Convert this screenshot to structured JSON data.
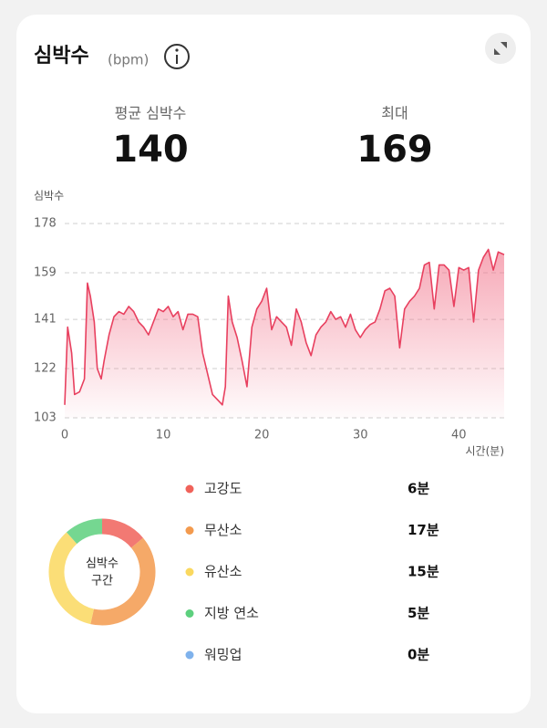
{
  "header": {
    "title": "심박수",
    "unit": "(bpm)"
  },
  "stats": [
    {
      "label": "평균 심박수",
      "value": "140"
    },
    {
      "label": "최대",
      "value": "169"
    }
  ],
  "chart_data": [
    {
      "type": "line",
      "ylabel": "심박수",
      "xlabel": "시간(분)",
      "x": [
        0,
        0.3,
        0.7,
        1.0,
        1.5,
        2.0,
        2.3,
        2.6,
        3.0,
        3.3,
        3.7,
        4.0,
        4.5,
        5.0,
        5.5,
        6.0,
        6.5,
        7.0,
        7.5,
        8.0,
        8.5,
        9.0,
        9.5,
        10.0,
        10.5,
        11.0,
        11.5,
        12.0,
        12.5,
        13.0,
        13.5,
        14.0,
        14.5,
        15.0,
        15.5,
        16.0,
        16.3,
        16.6,
        17.0,
        17.5,
        18.0,
        18.5,
        19.0,
        19.5,
        20.0,
        20.5,
        21.0,
        21.5,
        22.0,
        22.5,
        23.0,
        23.5,
        24.0,
        24.5,
        25.0,
        25.5,
        26.0,
        26.5,
        27.0,
        27.5,
        28.0,
        28.5,
        29.0,
        29.5,
        30.0,
        30.5,
        31.0,
        31.5,
        32.0,
        32.5,
        33.0,
        33.5,
        34.0,
        34.5,
        35.0,
        35.5,
        36.0,
        36.5,
        37.0,
        37.5,
        38.0,
        38.5,
        39.0,
        39.5,
        40.0,
        40.5,
        41.0,
        41.5,
        42.0,
        42.5,
        43.0,
        43.5,
        44.0,
        44.6
      ],
      "series": [
        {
          "name": "심박수",
          "color": "#e8405f",
          "values": [
            108,
            138,
            128,
            112,
            113,
            118,
            155,
            150,
            140,
            122,
            118,
            125,
            135,
            142,
            144,
            143,
            146,
            144,
            140,
            138,
            135,
            140,
            145,
            144,
            146,
            142,
            144,
            137,
            143,
            143,
            142,
            128,
            120,
            112,
            110,
            108,
            115,
            150,
            140,
            134,
            125,
            115,
            138,
            145,
            148,
            153,
            137,
            142,
            140,
            138,
            131,
            145,
            140,
            132,
            127,
            135,
            138,
            140,
            144,
            141,
            142,
            138,
            143,
            137,
            134,
            137,
            139,
            140,
            145,
            152,
            153,
            150,
            130,
            145,
            148,
            150,
            153,
            162,
            163,
            145,
            162,
            162,
            160,
            146,
            161,
            160,
            161,
            140,
            160,
            165,
            168,
            160,
            167,
            166
          ]
        }
      ],
      "xlim": [
        0,
        44.6
      ],
      "xticks": [
        0,
        10,
        20,
        30,
        40
      ],
      "ylim": [
        103,
        178
      ],
      "yticks": [
        103,
        122,
        141,
        159,
        178
      ],
      "grid": true
    },
    {
      "type": "donut",
      "center_label": [
        "심박수",
        "구간"
      ],
      "categories": [
        "고강도",
        "무산소",
        "유산소",
        "지방 연소",
        "워밍업"
      ],
      "values": [
        6,
        17,
        15,
        5,
        0
      ],
      "value_labels": [
        "6분",
        "17분",
        "15분",
        "5분",
        "0분"
      ],
      "colors": [
        "#f0625a",
        "#f39a4e",
        "#fad85f",
        "#5dd07e",
        "#7fb2ec"
      ]
    }
  ]
}
